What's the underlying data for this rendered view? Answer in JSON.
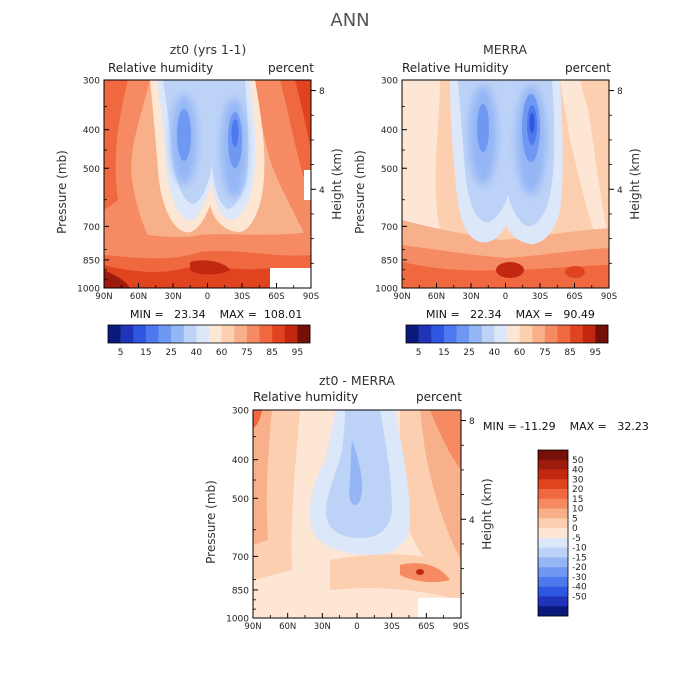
{
  "page": {
    "title": "ANN"
  },
  "colors": {
    "negative": [
      "#0a1a7a",
      "#1f34b8",
      "#2f56e0",
      "#4d78ee",
      "#6f98f2",
      "#94b6f5",
      "#bcd2f7",
      "#dce8fa"
    ],
    "positive": [
      "#fde6d4",
      "#fbcfb0",
      "#f8b08a",
      "#f58a63",
      "#ef6840",
      "#e0441f",
      "#c22810",
      "#9e1a0c",
      "#741008"
    ]
  },
  "panels": [
    {
      "id": "zt0",
      "title": "zt0 (yrs 1-1)",
      "left_label": "Relative humidity",
      "right_label": "percent",
      "ylabel": "Pressure (mb)",
      "ylabel_right": "Height (km)",
      "stats": "MIN =   23.34    MAX =  108.01"
    },
    {
      "id": "merra",
      "title": "MERRA",
      "left_label": "Relative Humidity",
      "right_label": "percent",
      "ylabel": "Pressure (mb)",
      "ylabel_right": "Height (km)",
      "stats": "MIN =   22.34    MAX =   90.49"
    },
    {
      "id": "diff",
      "title": "zt0 - MERRA",
      "left_label": "Relative humidity",
      "right_label": "percent",
      "ylabel": "Pressure (mb)",
      "ylabel_right": "Height (km)",
      "stats": "MIN = -11.29    MAX =   32.23"
    }
  ],
  "chart_data": [
    {
      "type": "heatmap",
      "title": "zt0 (yrs 1-1)",
      "variable": "Relative humidity",
      "units": "percent",
      "x_tick_labels": [
        "90N",
        "60N",
        "30N",
        "0",
        "30S",
        "60S",
        "90S"
      ],
      "x_values": [
        90,
        60,
        30,
        0,
        -30,
        -60,
        -90
      ],
      "y_tick_labels": [
        "300",
        "400",
        "500",
        "700",
        "850",
        "1000"
      ],
      "y_values": [
        300,
        400,
        500,
        700,
        850,
        1000
      ],
      "y_scale": "log",
      "y_reversed": true,
      "height_km_ticks": [
        8,
        4
      ],
      "xlabel": "",
      "ylabel": "Pressure (mb)",
      "ylabel_right": "Height (km)",
      "min": 23.34,
      "max": 108.01,
      "colorbar_levels": [
        5,
        15,
        25,
        40,
        60,
        75,
        85,
        95
      ]
    },
    {
      "type": "heatmap",
      "title": "MERRA",
      "variable": "Relative Humidity",
      "units": "percent",
      "x_tick_labels": [
        "90N",
        "60N",
        "30N",
        "0",
        "30S",
        "60S",
        "90S"
      ],
      "x_values": [
        90,
        60,
        30,
        0,
        -30,
        -60,
        -90
      ],
      "y_tick_labels": [
        "300",
        "400",
        "500",
        "700",
        "850",
        "1000"
      ],
      "y_values": [
        300,
        400,
        500,
        700,
        850,
        1000
      ],
      "y_scale": "log",
      "y_reversed": true,
      "height_km_ticks": [
        8,
        4
      ],
      "xlabel": "",
      "ylabel": "Pressure (mb)",
      "ylabel_right": "Height (km)",
      "min": 22.34,
      "max": 90.49,
      "colorbar_levels": [
        5,
        15,
        25,
        40,
        60,
        75,
        85,
        95
      ]
    },
    {
      "type": "heatmap",
      "title": "zt0 - MERRA",
      "variable": "Relative humidity",
      "units": "percent",
      "x_tick_labels": [
        "90N",
        "60N",
        "30N",
        "0",
        "30S",
        "60S",
        "90S"
      ],
      "x_values": [
        90,
        60,
        30,
        0,
        -30,
        -60,
        -90
      ],
      "y_tick_labels": [
        "300",
        "400",
        "500",
        "700",
        "850",
        "1000"
      ],
      "y_values": [
        300,
        400,
        500,
        700,
        850,
        1000
      ],
      "y_scale": "log",
      "y_reversed": true,
      "height_km_ticks": [
        8,
        4
      ],
      "xlabel": "",
      "ylabel": "Pressure (mb)",
      "ylabel_right": "Height (km)",
      "min": -11.29,
      "max": 32.23,
      "colorbar_levels": [
        50,
        40,
        30,
        20,
        15,
        10,
        5,
        0,
        -5,
        -10,
        -15,
        -20,
        -30,
        -40,
        -50
      ]
    }
  ]
}
